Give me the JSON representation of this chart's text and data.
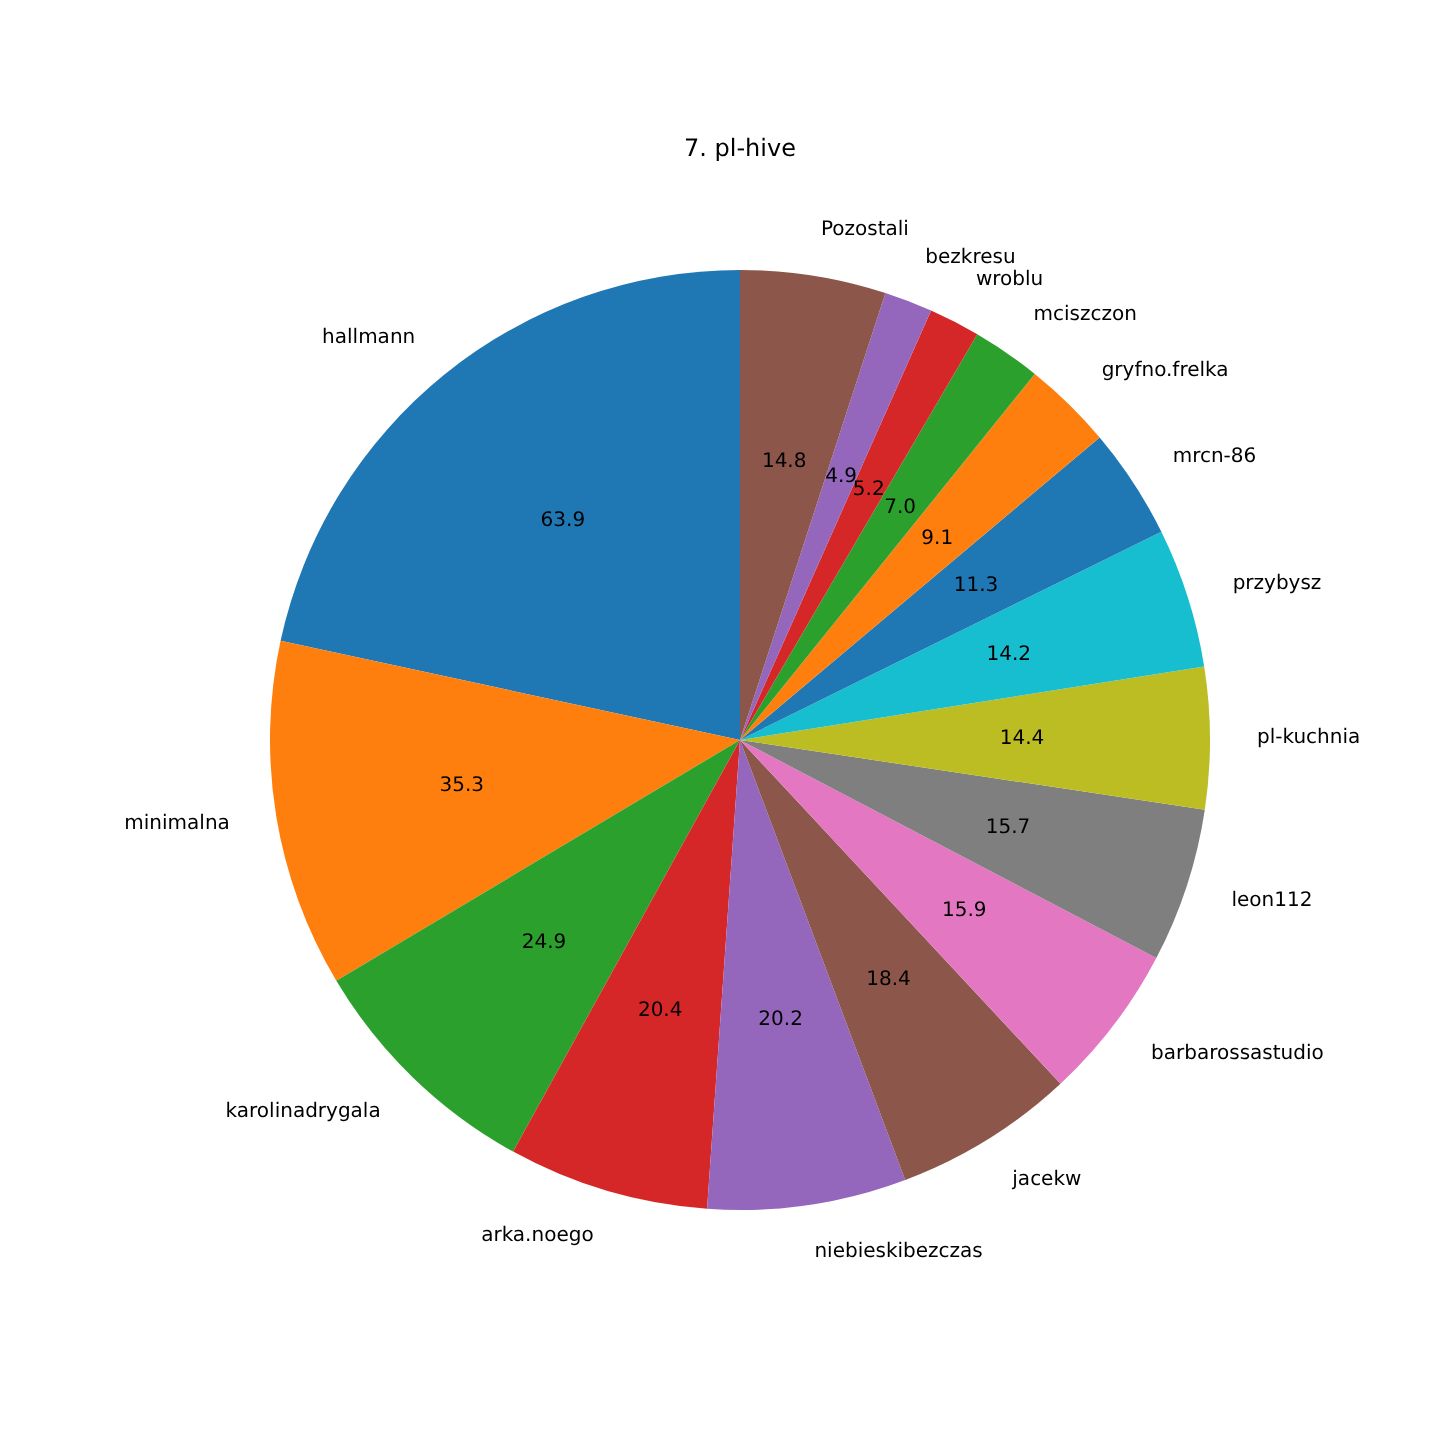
{
  "chart_data": {
    "type": "pie",
    "title": "7. pl-hive",
    "categories": [
      "hallmann",
      "minimalna",
      "karolinadrygala",
      "arka.noego",
      "niebieskibezczas",
      "jacekw",
      "barbarossastudio",
      "leon112",
      "pl-kuchnia",
      "przybysz",
      "mrcn-86",
      "gryfno.frelka",
      "mciszczon",
      "wroblu",
      "bezkresu",
      "Pozostali"
    ],
    "values": [
      63.9,
      35.3,
      24.9,
      20.4,
      20.2,
      18.4,
      15.9,
      15.7,
      14.4,
      14.2,
      11.3,
      9.1,
      7.0,
      5.2,
      4.9,
      14.8
    ],
    "colors": [
      "#1f77b4",
      "#ff7f0e",
      "#2ca02c",
      "#d62728",
      "#9467bd",
      "#8c564b",
      "#e377c2",
      "#7f7f7f",
      "#bcbd22",
      "#17becf",
      "#1f77b4",
      "#ff7f0e",
      "#2ca02c",
      "#d62728",
      "#9467bd",
      "#8c564b"
    ],
    "value_labels": [
      "63.9",
      "35.3",
      "24.9",
      "20.4",
      "20.2",
      "18.4",
      "15.9",
      "15.7",
      "14.4",
      "14.2",
      "11.3",
      "9.1",
      "7.0",
      "5.2",
      "4.9",
      "14.8"
    ]
  }
}
